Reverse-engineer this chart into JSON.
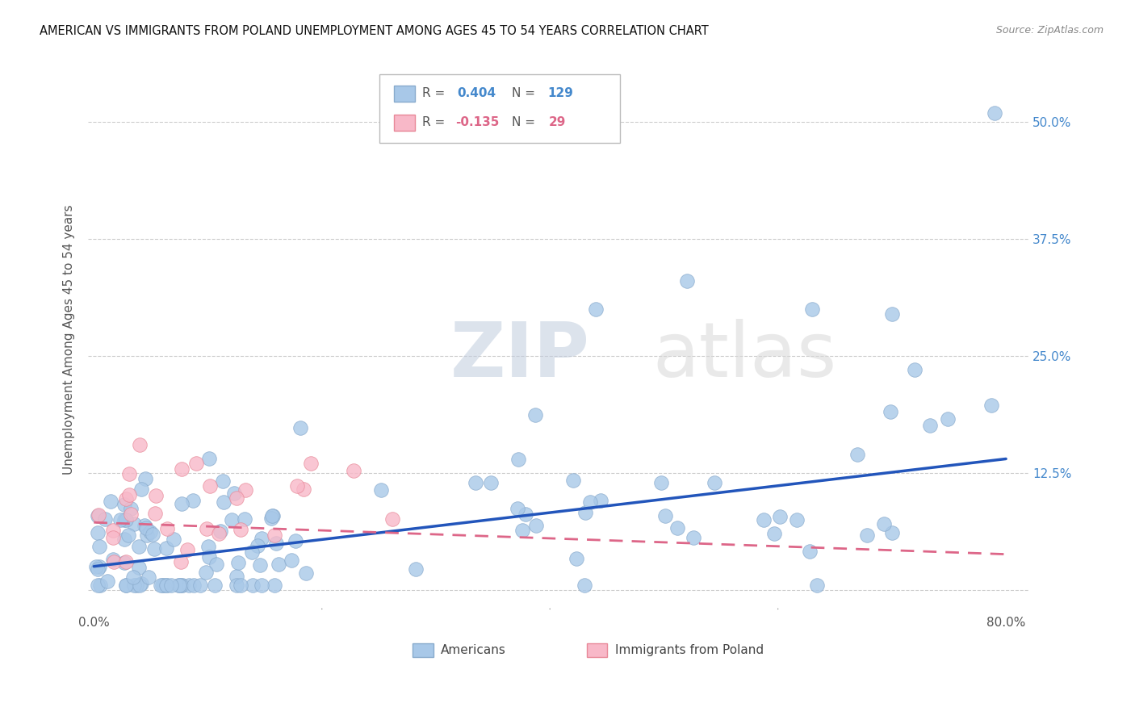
{
  "title": "AMERICAN VS IMMIGRANTS FROM POLAND UNEMPLOYMENT AMONG AGES 45 TO 54 YEARS CORRELATION CHART",
  "source": "Source: ZipAtlas.com",
  "ylabel": "Unemployment Among Ages 45 to 54 years",
  "xlim": [
    -0.005,
    0.82
  ],
  "ylim": [
    -0.025,
    0.56
  ],
  "americans_R": 0.404,
  "americans_N": 129,
  "poland_R": -0.135,
  "poland_N": 29,
  "background_color": "#ffffff",
  "grid_color": "#cccccc",
  "watermark_zip": "ZIP",
  "watermark_atlas": "atlas",
  "watermark_color": "#d5dff0",
  "american_color": "#a8c8e8",
  "poland_color": "#f8b8c8",
  "american_edge_color": "#88aacc",
  "poland_edge_color": "#e88898",
  "american_line_color": "#2255bb",
  "poland_line_color": "#dd6688",
  "legend_american_label": "Americans",
  "legend_poland_label": "Immigrants from Poland",
  "american_trend_x": [
    0.0,
    0.8
  ],
  "american_trend_y": [
    0.025,
    0.14
  ],
  "poland_trend_x": [
    0.0,
    0.8
  ],
  "poland_trend_y": [
    0.072,
    0.038
  ],
  "ytick_positions": [
    0.0,
    0.125,
    0.25,
    0.375,
    0.5
  ],
  "ytick_labels_right": [
    "",
    "12.5%",
    "25.0%",
    "37.5%",
    "50.0%"
  ],
  "xtick_positions": [
    0.0,
    0.2,
    0.4,
    0.6,
    0.8
  ],
  "xtick_labels": [
    "0.0%",
    "",
    "",
    "",
    "80.0%"
  ],
  "tick_label_color": "#4488cc",
  "axis_label_color": "#555555"
}
